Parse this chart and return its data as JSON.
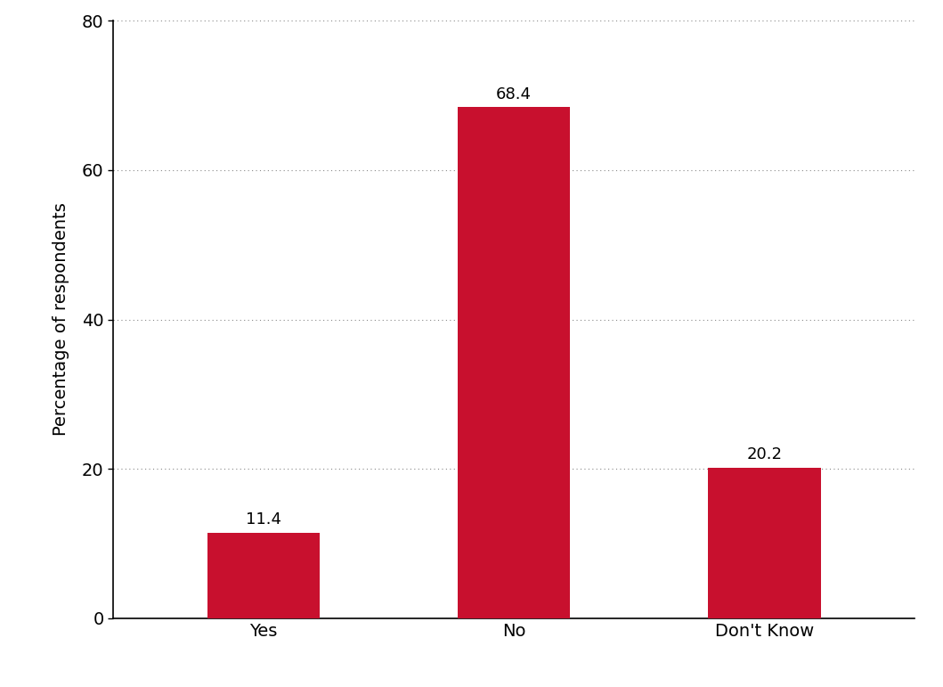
{
  "categories": [
    "Yes",
    "No",
    "Don't Know"
  ],
  "values": [
    11.4,
    68.4,
    20.2
  ],
  "bar_color": "#C8102E",
  "ylabel": "Percentage of respondents",
  "ylim": [
    0,
    80
  ],
  "yticks": [
    0,
    20,
    40,
    60,
    80
  ],
  "background_color": "#ffffff",
  "bar_width": 0.45,
  "tick_fontsize": 14,
  "ylabel_fontsize": 14,
  "value_label_fontsize": 13
}
